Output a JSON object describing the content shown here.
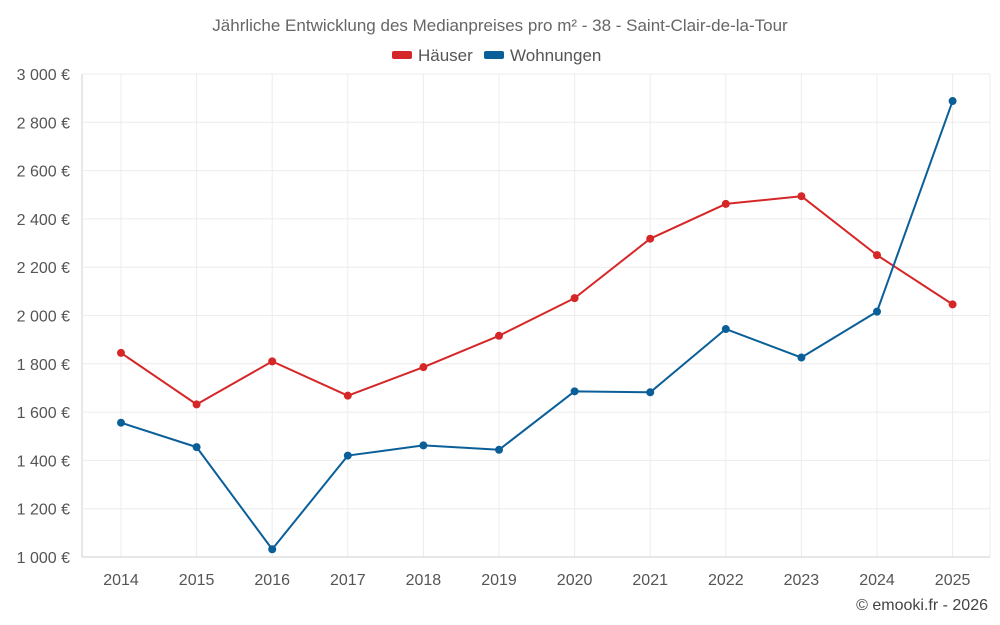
{
  "chart_data": {
    "type": "line",
    "title": "Jährliche Entwicklung des Medianpreises pro m² - 38 - Saint-Clair-de-la-Tour",
    "xlabel": "",
    "ylabel": "",
    "categories": [
      "2014",
      "2015",
      "2016",
      "2017",
      "2018",
      "2019",
      "2020",
      "2021",
      "2022",
      "2023",
      "2024",
      "2025"
    ],
    "ylim": [
      1000,
      3000
    ],
    "yticks": [
      1000,
      1200,
      1400,
      1600,
      1800,
      2000,
      2200,
      2400,
      2600,
      2800,
      3000
    ],
    "ytick_labels": [
      "1 000 €",
      "1 200 €",
      "1 400 €",
      "1 600 €",
      "1 800 €",
      "2 000 €",
      "2 200 €",
      "2 400 €",
      "2 600 €",
      "2 800 €",
      "3 000 €"
    ],
    "grid": true,
    "legend_position": "top-center",
    "series": [
      {
        "name": "Häuser",
        "color": "#d62728",
        "values": [
          1845,
          1632,
          1810,
          1668,
          1786,
          1916,
          2072,
          2318,
          2462,
          2494,
          2250,
          2046
        ]
      },
      {
        "name": "Wohnungen",
        "color": "#0b5f99",
        "values": [
          1556,
          1455,
          1032,
          1420,
          1462,
          1444,
          1686,
          1682,
          1944,
          1826,
          2016,
          2888
        ]
      }
    ]
  },
  "credit": "© emooki.fr - 2026"
}
